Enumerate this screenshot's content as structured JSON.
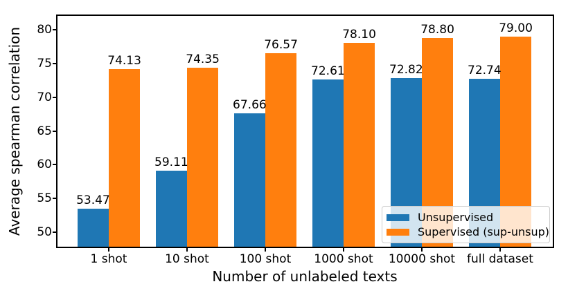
{
  "chart_data": {
    "type": "bar",
    "title": "",
    "xlabel": "Number of unlabeled texts",
    "ylabel": "Average spearman correlation",
    "categories": [
      "1 shot",
      "10 shot",
      "100 shot",
      "1000 shot",
      "10000 shot",
      "full dataset"
    ],
    "series": [
      {
        "name": "Unsupervised",
        "color": "#1f77b4",
        "values": [
          53.47,
          59.11,
          67.66,
          72.61,
          72.82,
          72.74
        ]
      },
      {
        "name": "Supervised (sup-unsup)",
        "color": "#ff7f0e",
        "values": [
          74.13,
          74.35,
          76.57,
          78.1,
          78.8,
          79.0
        ]
      }
    ],
    "bar_width": 0.4,
    "yticks": [
      50,
      55,
      60,
      65,
      70,
      75,
      80
    ],
    "ylim": [
      47.85,
      82.05
    ],
    "xlim": [
      -0.655,
      5.673
    ],
    "grid": false,
    "value_label_decimals": 2,
    "legend": {
      "position": "lower right",
      "entries": [
        "Unsupervised",
        "Supervised (sup-unsup)"
      ]
    }
  },
  "colors": {
    "background": "#ffffff",
    "spine": "#000000",
    "text": "#000000",
    "legend_border": "#cccccc"
  }
}
